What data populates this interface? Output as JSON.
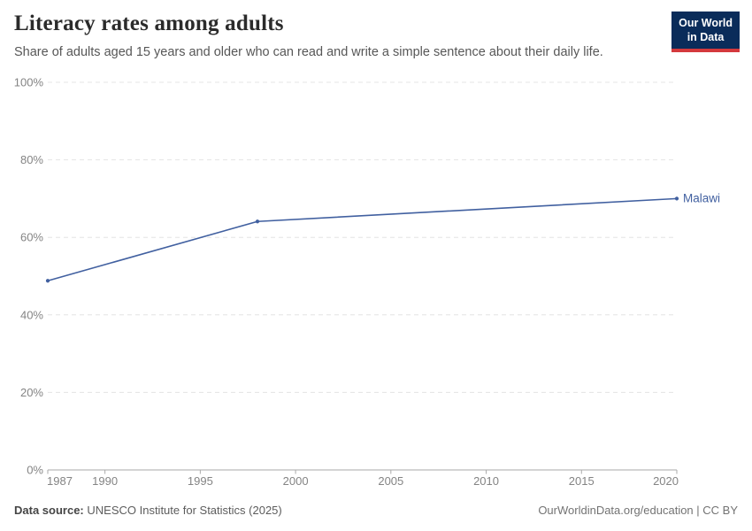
{
  "header": {
    "title": "Literacy rates among adults",
    "subtitle": "Share of adults aged 15 years and older who can read and write a simple sentence about their daily life.",
    "logo_line1": "Our World",
    "logo_line2": "in Data"
  },
  "chart_data": {
    "type": "line",
    "title": "Literacy rates among adults",
    "xlabel": "",
    "ylabel": "",
    "xlim": [
      1987,
      2020
    ],
    "ylim": [
      0,
      100
    ],
    "x_ticks": [
      1987,
      1990,
      1995,
      2000,
      2005,
      2010,
      2015,
      2020
    ],
    "y_ticks": [
      0,
      20,
      40,
      60,
      80,
      100
    ],
    "y_tick_suffix": "%",
    "grid": "horizontal-dashed",
    "legend_position": "end-of-line-label",
    "series": [
      {
        "name": "Malawi",
        "color": "#4160a0",
        "points": [
          {
            "year": 1987,
            "value": 48.8
          },
          {
            "year": 1998,
            "value": 64.1
          },
          {
            "year": 2020,
            "value": 70.0
          }
        ]
      }
    ]
  },
  "footer": {
    "source_label": "Data source:",
    "source_text": "UNESCO Institute for Statistics (2025)",
    "link_text": "OurWorldinData.org/education | CC BY"
  },
  "colors": {
    "line": "#4160a0",
    "grid": "#e4e4e4",
    "axis": "#aaaaaa",
    "tick_label": "#848484",
    "title": "#2b2b2b",
    "subtitle": "#575757",
    "logo_bg": "#0a2c5a",
    "logo_red": "#d4393d"
  }
}
